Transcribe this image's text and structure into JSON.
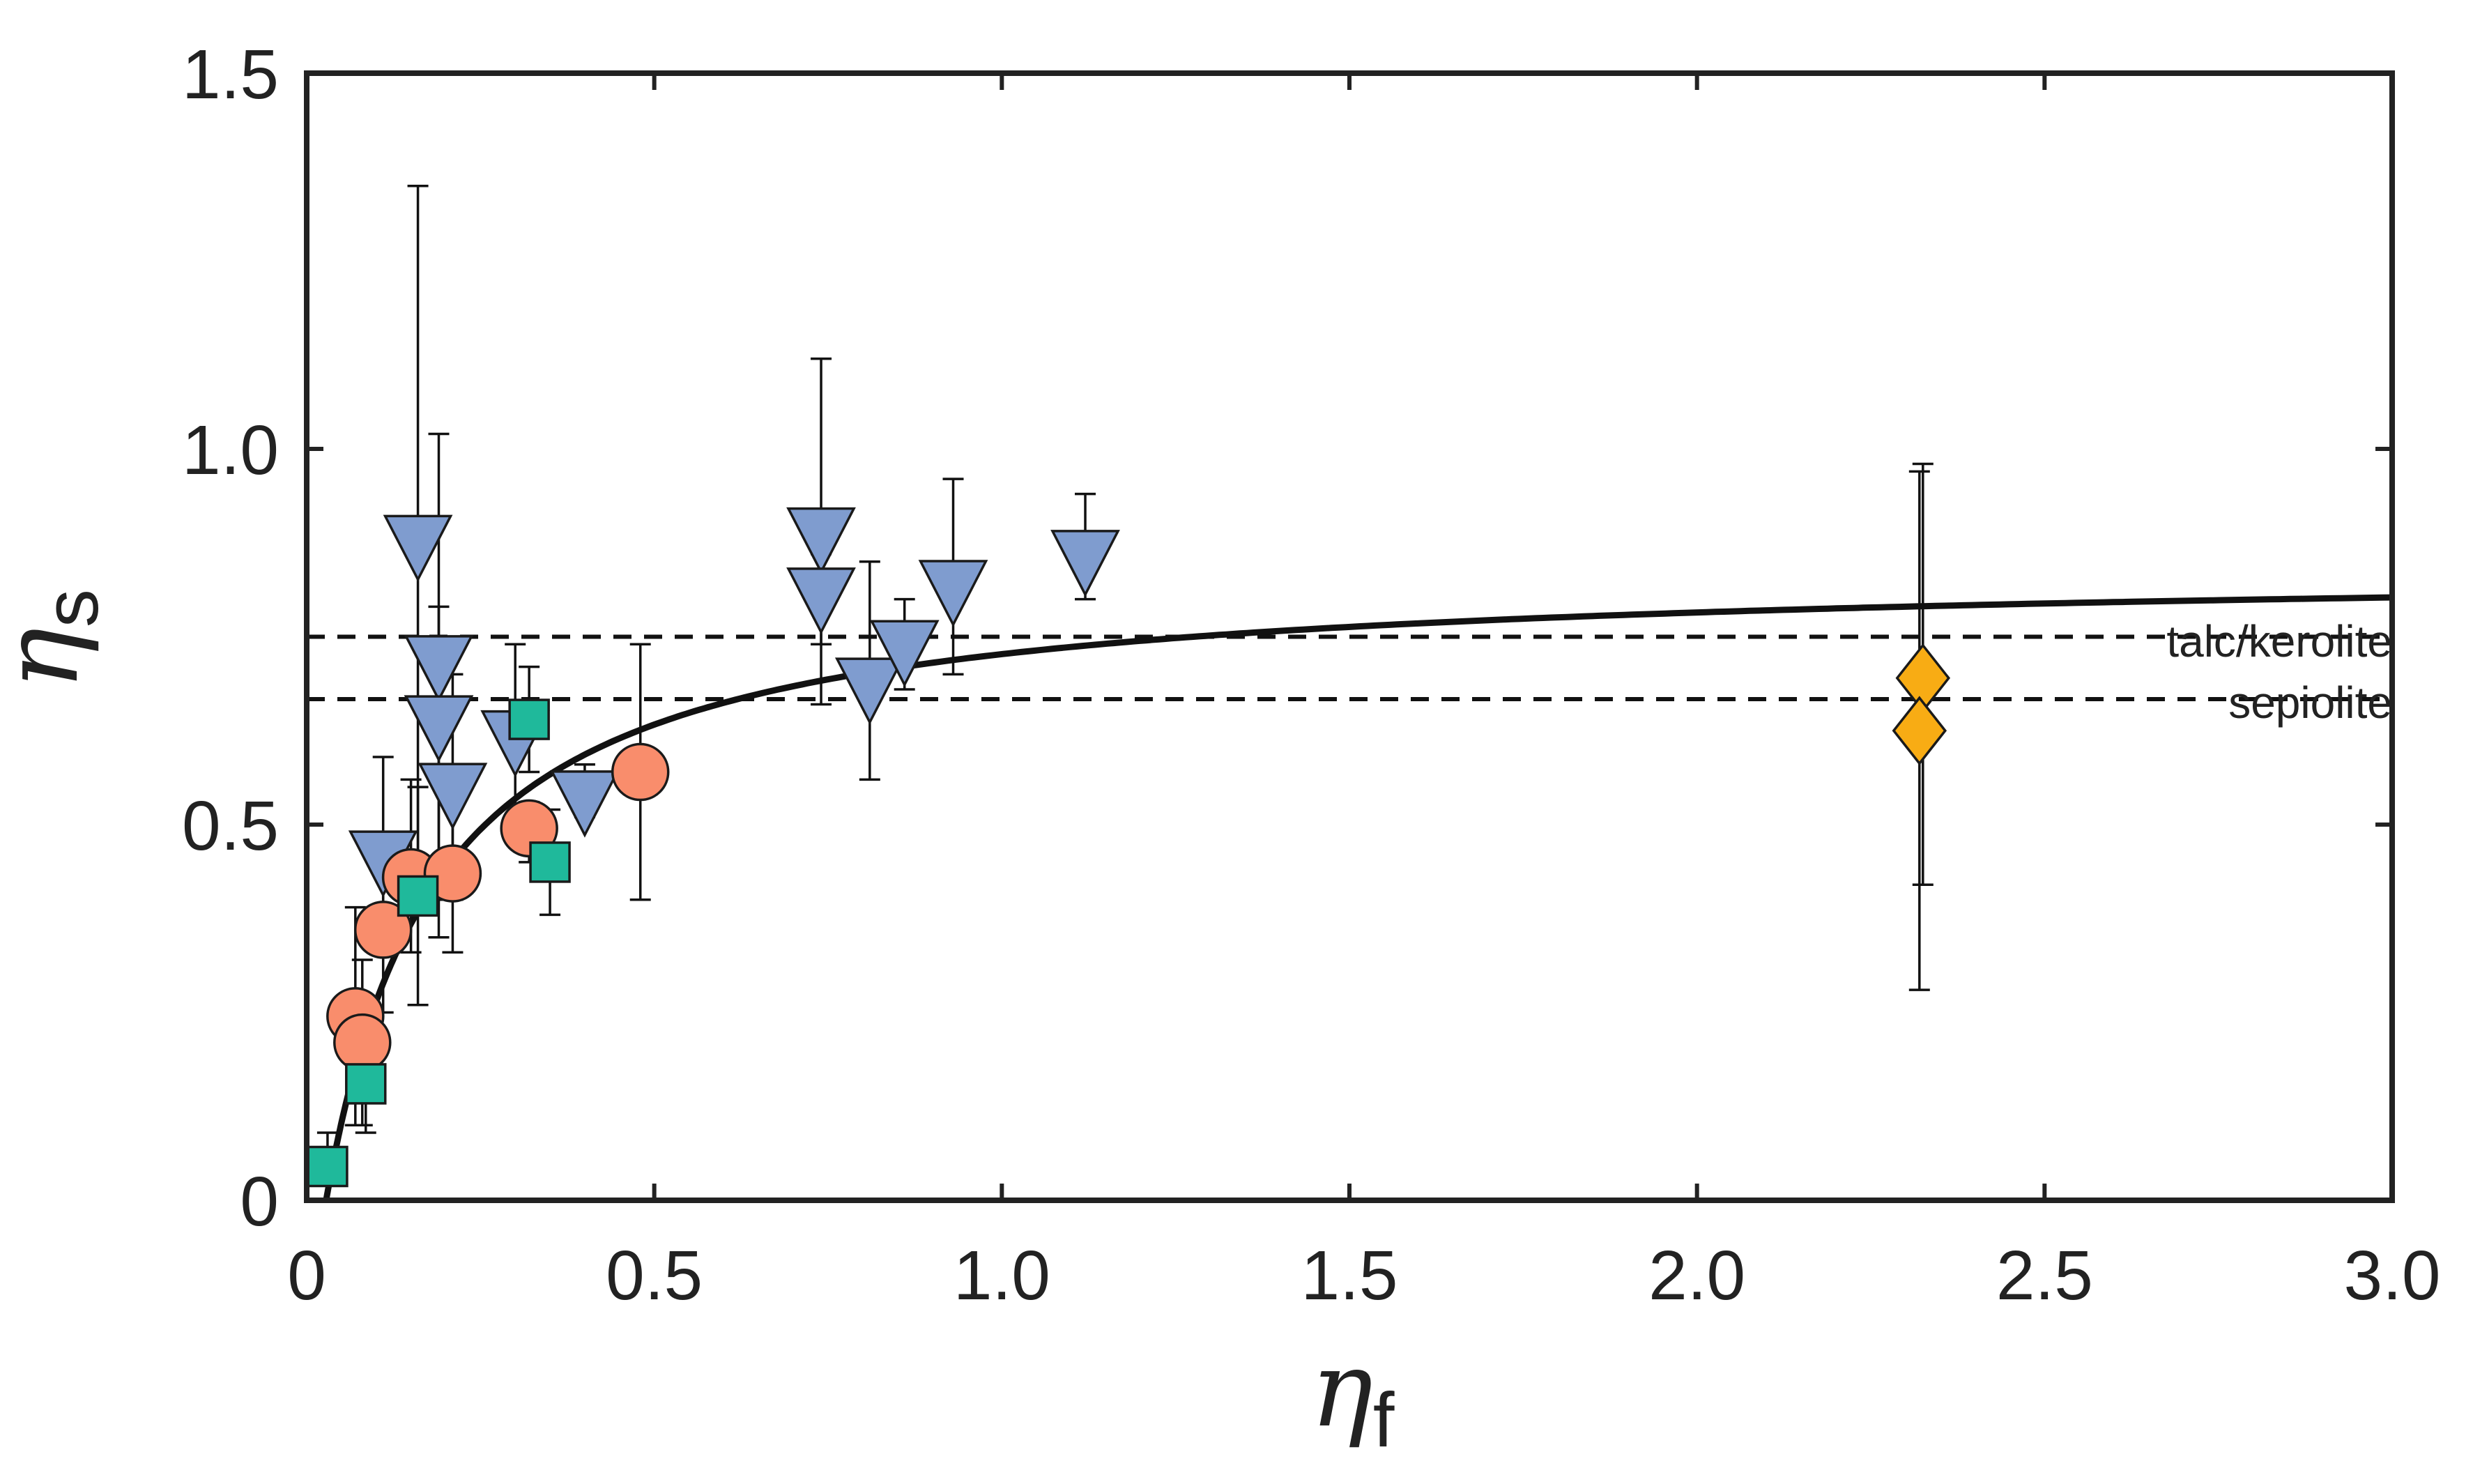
{
  "chart_data": {
    "type": "scatter",
    "title": "",
    "xlabel": "η",
    "xlabel_sub": "f",
    "ylabel": "η",
    "ylabel_sub": "s",
    "xlim": [
      0,
      3.0
    ],
    "ylim": [
      0,
      1.5
    ],
    "xticks": [
      0,
      0.5,
      1.0,
      1.5,
      2.0,
      2.5,
      3.0
    ],
    "xtick_labels": [
      "0",
      "0.5",
      "1.0",
      "1.5",
      "2.0",
      "2.5",
      "3.0"
    ],
    "yticks": [
      0,
      0.5,
      1.0,
      1.5
    ],
    "ytick_labels": [
      "0",
      "0.5",
      "1.0",
      "1.5"
    ],
    "grid": false,
    "colors": {
      "triangles": "#7f9ccf",
      "circles": "#f98d6c",
      "squares": "#1fb99b",
      "diamonds": "#f8ac14",
      "curve": "#111111",
      "axis": "#222222"
    },
    "reference_lines": [
      {
        "label": "talc/kerolite",
        "y": 0.75,
        "style": "dashed"
      },
      {
        "label": "sepiolite",
        "y": 0.667,
        "style": "dashed"
      }
    ],
    "fit_curve": {
      "style": "solid",
      "a": 0.845,
      "b": 0.158,
      "x0": 0.028,
      "x_end": 3.0
    },
    "series": [
      {
        "name": "triangles",
        "marker": "triangle-down",
        "points": [
          {
            "x": 0.16,
            "y": 0.88,
            "lo": 0.39,
            "hi": 1.35
          },
          {
            "x": 0.19,
            "y": 0.72,
            "lo": 0.4,
            "hi": 1.02
          },
          {
            "x": 0.19,
            "y": 0.64,
            "lo": 0.35,
            "hi": 0.79
          },
          {
            "x": 0.21,
            "y": 0.55,
            "lo": 0.4,
            "hi": 0.7
          },
          {
            "x": 0.11,
            "y": 0.46,
            "lo": 0.33,
            "hi": 0.59
          },
          {
            "x": 0.3,
            "y": 0.62,
            "lo": 0.49,
            "hi": 0.74
          },
          {
            "x": 0.4,
            "y": 0.54,
            "lo": 0.51,
            "hi": 0.58
          },
          {
            "x": 0.74,
            "y": 0.89,
            "lo": 0.66,
            "hi": 1.12
          },
          {
            "x": 0.74,
            "y": 0.81,
            "lo": 0.74,
            "hi": 0.86
          },
          {
            "x": 0.81,
            "y": 0.69,
            "lo": 0.56,
            "hi": 0.85
          },
          {
            "x": 0.86,
            "y": 0.74,
            "lo": 0.68,
            "hi": 0.8
          },
          {
            "x": 0.93,
            "y": 0.82,
            "lo": 0.7,
            "hi": 0.96
          },
          {
            "x": 1.12,
            "y": 0.86,
            "lo": 0.8,
            "hi": 0.94
          }
        ]
      },
      {
        "name": "circles",
        "marker": "circle",
        "points": [
          {
            "x": 0.07,
            "y": 0.245,
            "lo": 0.1,
            "hi": 0.39
          },
          {
            "x": 0.08,
            "y": 0.21,
            "lo": 0.1,
            "hi": 0.32
          },
          {
            "x": 0.11,
            "y": 0.36,
            "lo": 0.25,
            "hi": 0.48
          },
          {
            "x": 0.15,
            "y": 0.43,
            "lo": 0.33,
            "hi": 0.56
          },
          {
            "x": 0.21,
            "y": 0.435,
            "lo": 0.33,
            "hi": 0.54
          },
          {
            "x": 0.32,
            "y": 0.495,
            "lo": 0.45,
            "hi": 0.53
          },
          {
            "x": 0.48,
            "y": 0.57,
            "lo": 0.4,
            "hi": 0.74
          }
        ]
      },
      {
        "name": "squares",
        "marker": "square",
        "points": [
          {
            "x": 0.03,
            "y": 0.045,
            "lo": 0.0,
            "hi": 0.09
          },
          {
            "x": 0.085,
            "y": 0.155,
            "lo": 0.09,
            "hi": 0.22
          },
          {
            "x": 0.16,
            "y": 0.405,
            "lo": 0.26,
            "hi": 0.55
          },
          {
            "x": 0.32,
            "y": 0.64,
            "lo": 0.57,
            "hi": 0.71
          },
          {
            "x": 0.35,
            "y": 0.45,
            "lo": 0.38,
            "hi": 0.52
          }
        ]
      },
      {
        "name": "diamonds",
        "marker": "diamond",
        "points": [
          {
            "x": 2.325,
            "y": 0.695,
            "lo": 0.42,
            "hi": 0.98
          },
          {
            "x": 2.32,
            "y": 0.625,
            "lo": 0.28,
            "hi": 0.97
          }
        ]
      }
    ]
  }
}
